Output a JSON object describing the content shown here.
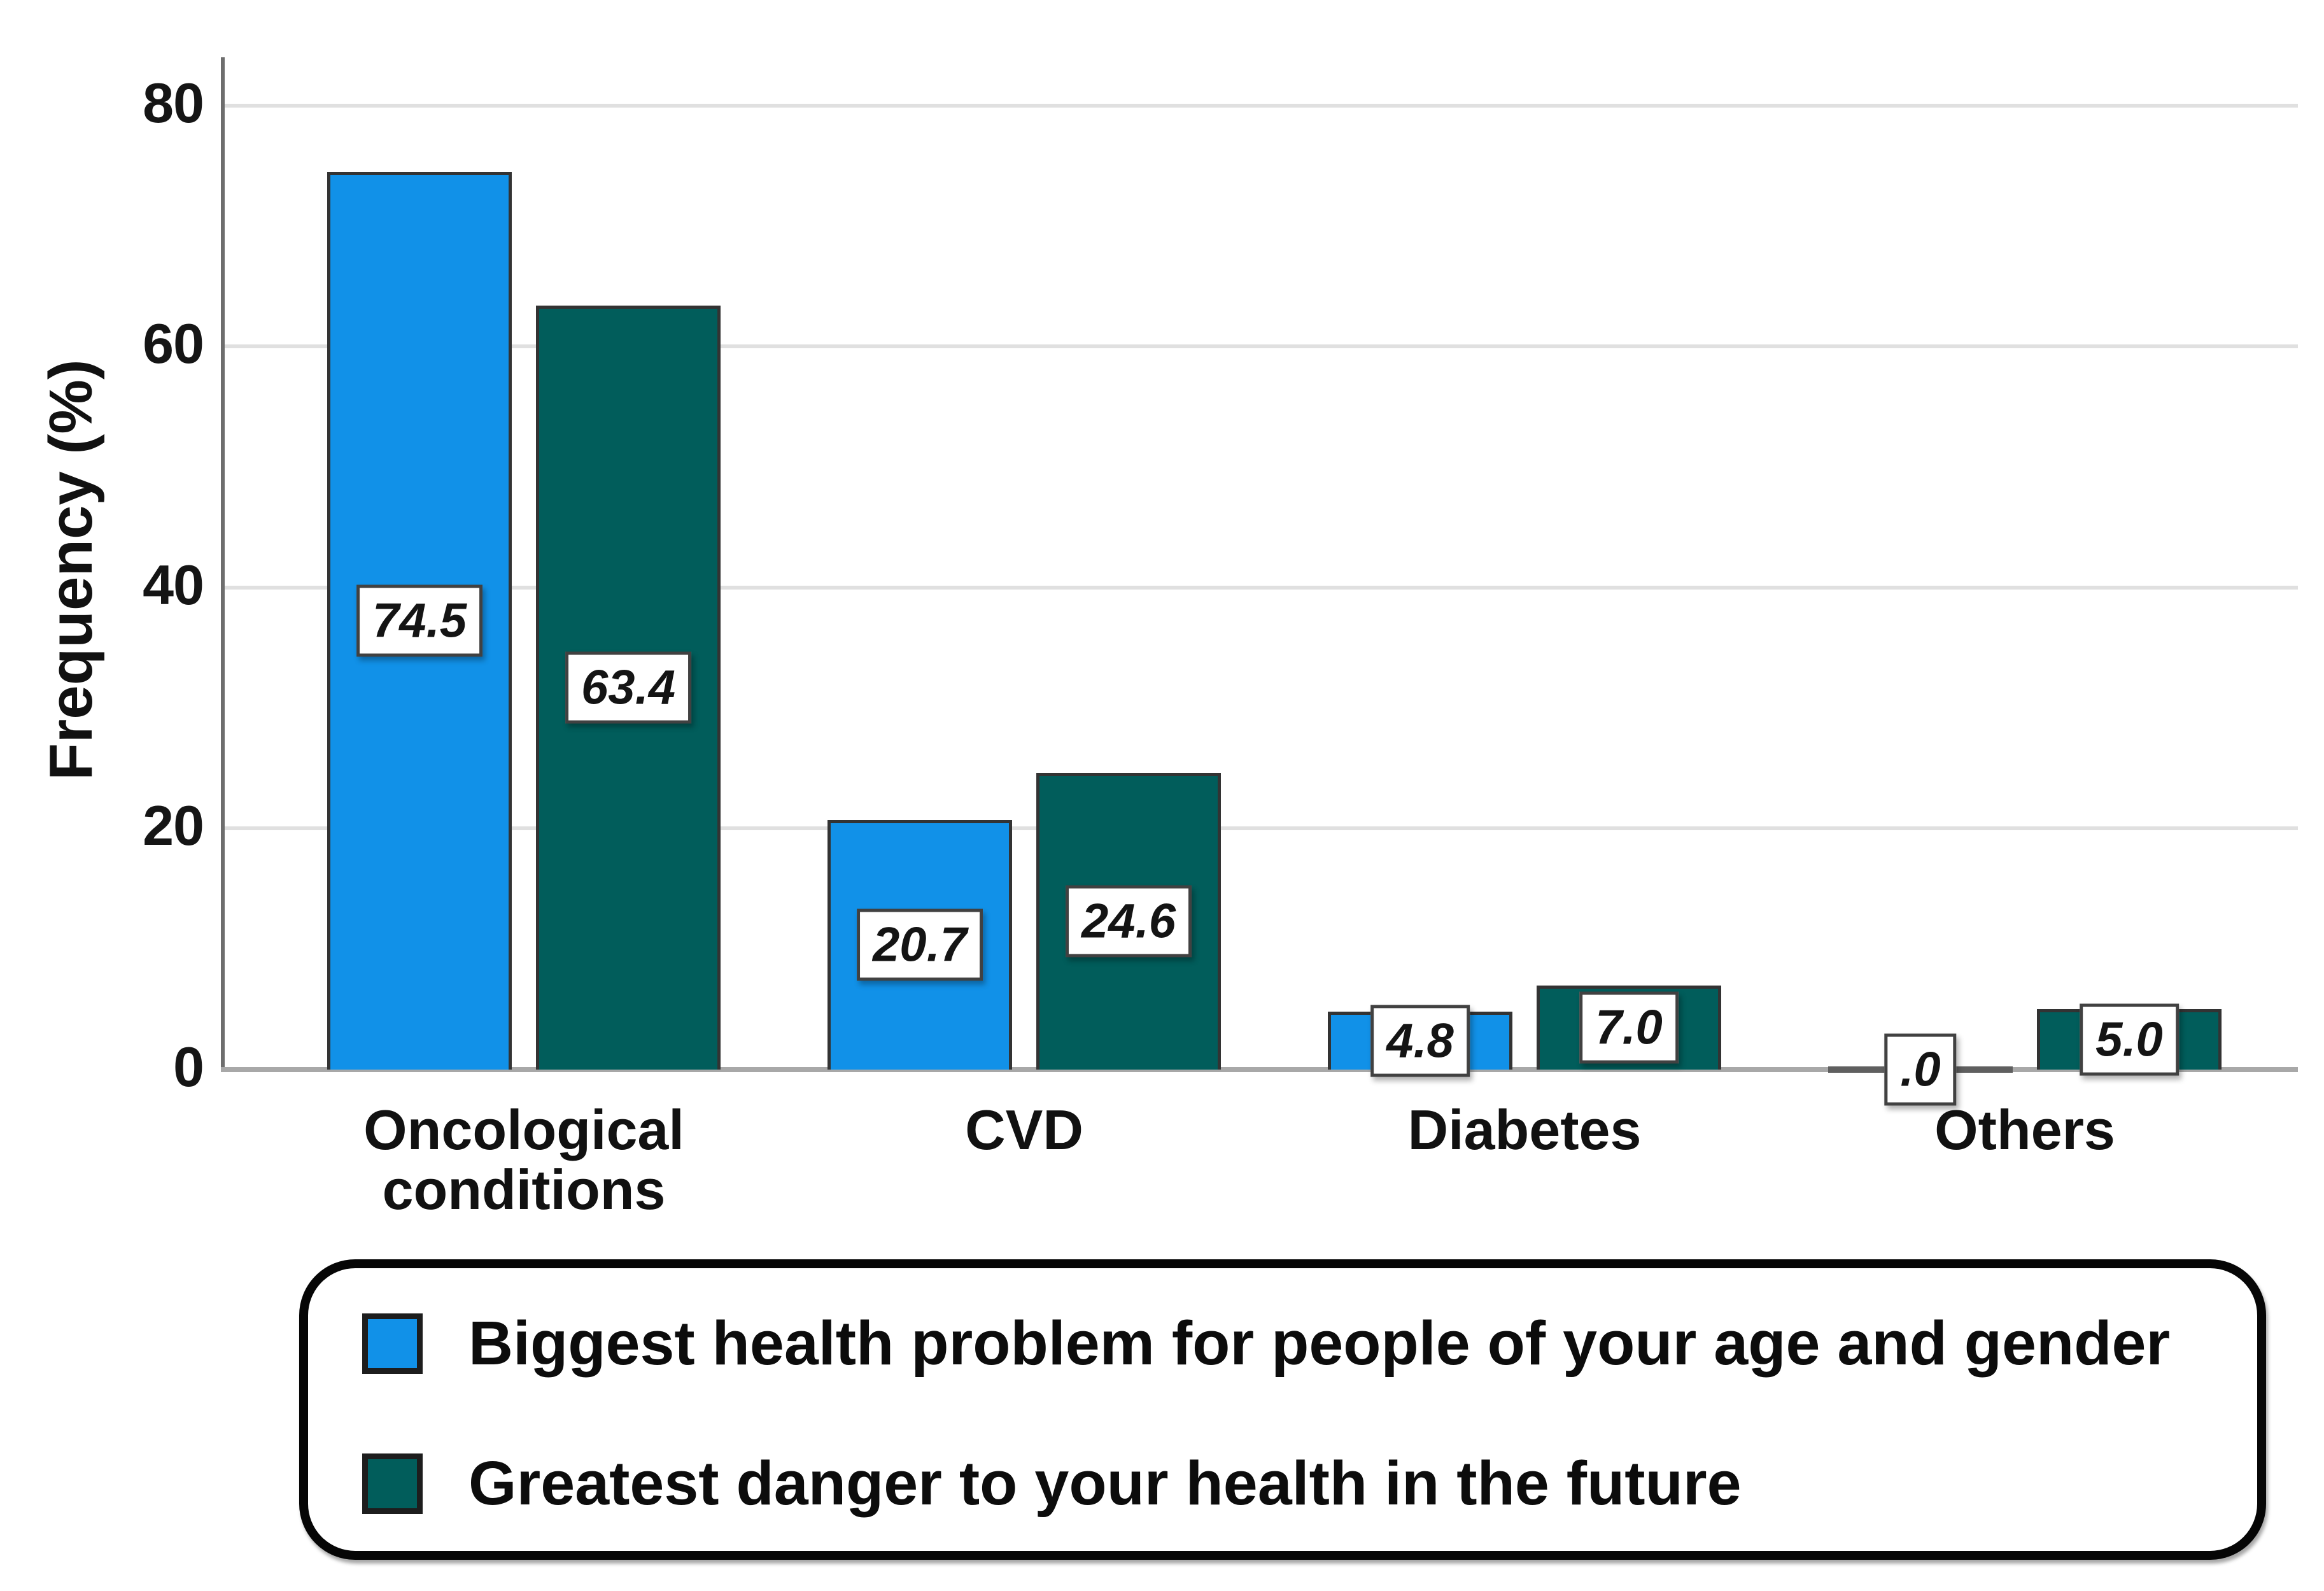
{
  "chart_data": {
    "type": "bar",
    "title": "",
    "ylabel": "Frequency (%)",
    "xlabel": "",
    "ylim": [
      0,
      84
    ],
    "yticks": [
      0,
      20,
      40,
      60,
      80
    ],
    "grid": "horizontal",
    "legend_position": "bottom",
    "categories": [
      "Oncological conditions",
      "CVD",
      "Diabetes",
      "Others"
    ],
    "series": [
      {
        "name": "Biggest health problem for people of your age and gender",
        "color": "#1191e8",
        "values": [
          74.5,
          20.7,
          4.8,
          0.0
        ],
        "value_labels": [
          "74.5",
          "20.7",
          "4.8",
          ".0"
        ]
      },
      {
        "name": "Greatest danger to your health in the future",
        "color": "#015d5b",
        "values": [
          63.4,
          24.6,
          7.0,
          5.0
        ],
        "value_labels": [
          "63.4",
          "24.6",
          "7.0",
          "5.0"
        ]
      }
    ]
  },
  "colors": {
    "grid": "#e0e0e0",
    "y_axis": "#6e6e6e",
    "baseline": "#a8a8a8",
    "zero_bar": "#5f5f5f",
    "label_box_border": "#414141",
    "legend_border": "#060606"
  }
}
